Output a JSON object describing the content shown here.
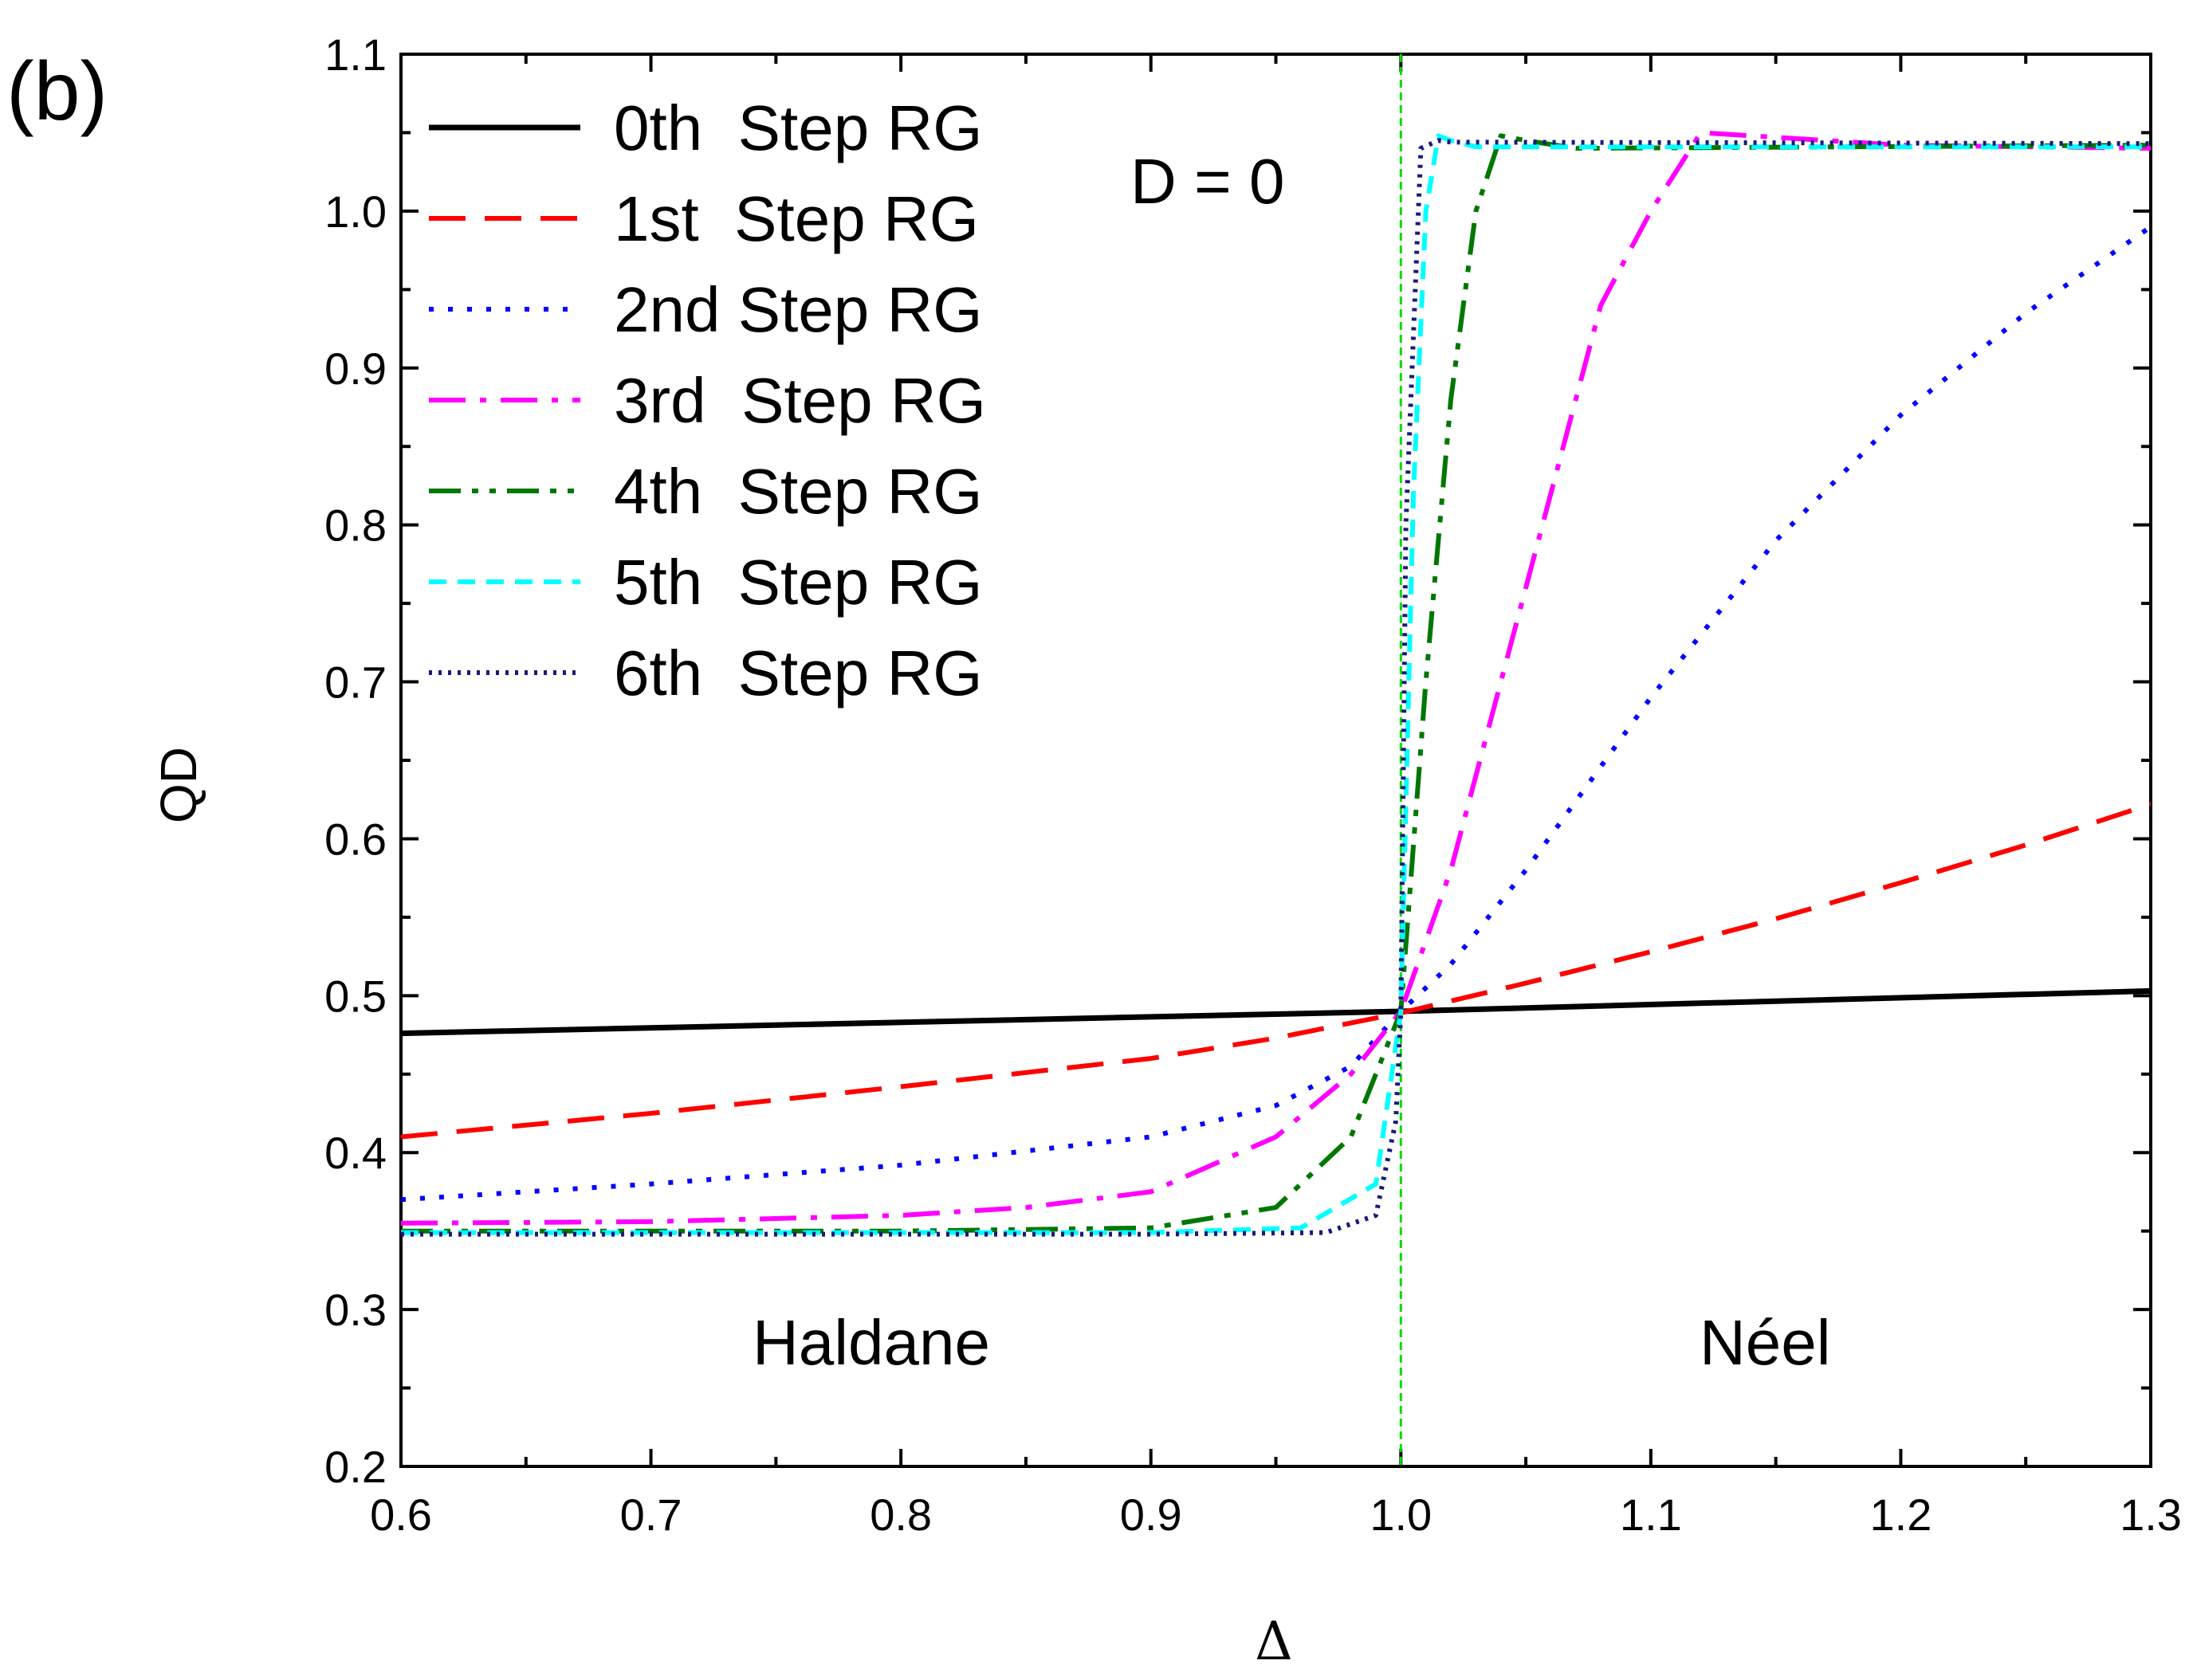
{
  "chart_data": {
    "type": "line",
    "panel_label": "(b)",
    "xlabel": "Δ",
    "ylabel": "QD",
    "xlim": [
      0.6,
      1.3
    ],
    "ylim": [
      0.2,
      1.1
    ],
    "x_ticks": [
      "0.6",
      "0.7",
      "0.8",
      "0.9",
      "1.0",
      "1.1",
      "1.2",
      "1.3"
    ],
    "y_ticks": [
      "0.2",
      "0.3",
      "0.4",
      "0.5",
      "0.6",
      "0.7",
      "0.8",
      "0.9",
      "1.0",
      "1.1"
    ],
    "annotations": {
      "d_label": "D = 0",
      "left_phase": "Haldane",
      "right_phase": "Néel"
    },
    "critical_line": {
      "x": 1.0,
      "color": "#00dd00"
    },
    "series": [
      {
        "name": "0th  Step RG",
        "color": "#000000",
        "dash": "solid",
        "x": [
          0.6,
          1.0,
          1.3
        ],
        "values": [
          0.476,
          0.49,
          0.503
        ]
      },
      {
        "name": "1st  Step RG",
        "color": "#ff0000",
        "dash": "dash",
        "x": [
          0.6,
          0.7,
          0.8,
          0.9,
          0.95,
          1.0,
          1.05,
          1.1,
          1.15,
          1.2,
          1.25,
          1.3
        ],
        "values": [
          0.41,
          0.425,
          0.442,
          0.46,
          0.473,
          0.489,
          0.508,
          0.528,
          0.549,
          0.572,
          0.596,
          0.622
        ]
      },
      {
        "name": "2nd Step RG",
        "color": "#0000ff",
        "dash": "dot",
        "x": [
          0.6,
          0.7,
          0.8,
          0.9,
          0.95,
          0.98,
          1.0,
          1.02,
          1.05,
          1.1,
          1.15,
          1.2,
          1.25,
          1.3
        ],
        "values": [
          0.37,
          0.38,
          0.392,
          0.41,
          0.43,
          0.455,
          0.49,
          0.52,
          0.58,
          0.69,
          0.79,
          0.87,
          0.935,
          0.99
        ]
      },
      {
        "name": "3rd  Step RG",
        "color": "#ff00ff",
        "dash": "dashdot",
        "x": [
          0.6,
          0.7,
          0.8,
          0.85,
          0.9,
          0.95,
          0.98,
          1.0,
          1.02,
          1.04,
          1.06,
          1.08,
          1.1,
          1.12,
          1.2,
          1.3
        ],
        "values": [
          0.355,
          0.356,
          0.36,
          0.365,
          0.375,
          0.41,
          0.45,
          0.49,
          0.58,
          0.7,
          0.82,
          0.94,
          1.0,
          1.05,
          1.042,
          1.04
        ]
      },
      {
        "name": "4th  Step RG",
        "color": "#007700",
        "dash": "dashdotdot",
        "x": [
          0.6,
          0.8,
          0.9,
          0.95,
          0.98,
          1.0,
          1.01,
          1.02,
          1.03,
          1.04,
          1.05,
          1.07,
          1.3
        ],
        "values": [
          0.35,
          0.35,
          0.352,
          0.365,
          0.41,
          0.49,
          0.7,
          0.88,
          1.0,
          1.048,
          1.045,
          1.04,
          1.042
        ]
      },
      {
        "name": "5th  Step RG",
        "color": "#00ffff",
        "dash": "shortdash",
        "x": [
          0.6,
          0.9,
          0.96,
          0.99,
          1.0,
          1.005,
          1.01,
          1.015,
          1.02,
          1.03,
          1.3
        ],
        "values": [
          0.349,
          0.349,
          0.352,
          0.38,
          0.49,
          0.82,
          1.0,
          1.048,
          1.045,
          1.041,
          1.041
        ]
      },
      {
        "name": "6th  Step RG",
        "color": "#1a1a7a",
        "dash": "densedot",
        "x": [
          0.6,
          0.9,
          0.97,
          0.99,
          0.998,
          1.0,
          1.002,
          1.008,
          1.015,
          1.02,
          1.3
        ],
        "values": [
          0.348,
          0.348,
          0.349,
          0.36,
          0.42,
          0.49,
          0.8,
          1.04,
          1.045,
          1.044,
          1.043
        ]
      }
    ]
  }
}
